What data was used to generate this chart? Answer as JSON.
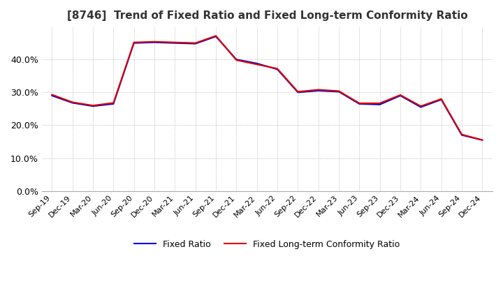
{
  "title": "[8746]  Trend of Fixed Ratio and Fixed Long-term Conformity Ratio",
  "title_fontsize": 11,
  "x_labels": [
    "Sep-19",
    "Dec-19",
    "Mar-20",
    "Jun-20",
    "Sep-20",
    "Dec-20",
    "Mar-21",
    "Jun-21",
    "Sep-21",
    "Dec-21",
    "Mar-22",
    "Jun-22",
    "Sep-22",
    "Dec-22",
    "Mar-23",
    "Jun-23",
    "Sep-23",
    "Dec-23",
    "Mar-24",
    "Jun-24",
    "Sep-24",
    "Dec-24"
  ],
  "fixed_ratio": [
    0.29,
    0.268,
    0.258,
    0.265,
    0.45,
    0.452,
    0.45,
    0.448,
    0.47,
    0.4,
    0.388,
    0.37,
    0.3,
    0.305,
    0.302,
    0.265,
    0.263,
    0.29,
    0.255,
    0.278,
    0.17,
    0.155
  ],
  "fixed_lt_ratio": [
    0.293,
    0.27,
    0.26,
    0.268,
    0.452,
    0.454,
    0.452,
    0.45,
    0.472,
    0.398,
    0.385,
    0.372,
    0.302,
    0.308,
    0.304,
    0.267,
    0.267,
    0.292,
    0.258,
    0.28,
    0.172,
    0.155
  ],
  "fixed_ratio_color": "#0000dd",
  "fixed_lt_ratio_color": "#dd0000",
  "ylim": [
    0.0,
    0.5
  ],
  "yticks": [
    0.0,
    0.1,
    0.2,
    0.3,
    0.4
  ],
  "background_color": "#ffffff",
  "plot_bg_color": "#ffffff",
  "grid_color": "#aaaaaa",
  "legend_fixed_ratio": "Fixed Ratio",
  "legend_fixed_lt_ratio": "Fixed Long-term Conformity Ratio"
}
